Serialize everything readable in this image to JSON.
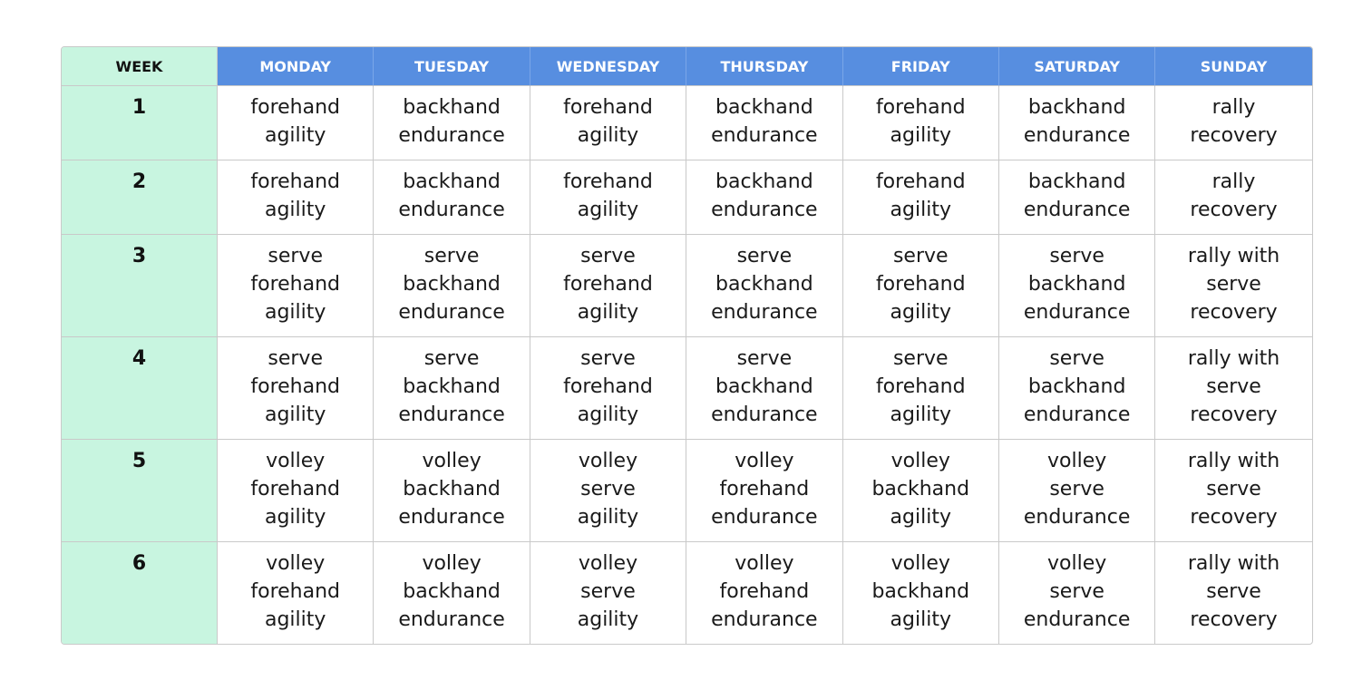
{
  "headers": {
    "week": "WEEK",
    "days": [
      "MONDAY",
      "TUESDAY",
      "WEDNESDAY",
      "THURSDAY",
      "FRIDAY",
      "SATURDAY",
      "SUNDAY"
    ]
  },
  "colors": {
    "week_column_bg": "#c8f5e0",
    "day_header_bg": "#578ee0",
    "day_header_text": "#ffffff",
    "grid_border": "#c9c9c9"
  },
  "rows": [
    {
      "week": "1",
      "cells": [
        [
          "forehand",
          "agility"
        ],
        [
          "backhand",
          "endurance"
        ],
        [
          "forehand",
          "agility"
        ],
        [
          "backhand",
          "endurance"
        ],
        [
          "forehand",
          "agility"
        ],
        [
          "backhand",
          "endurance"
        ],
        [
          "rally",
          "recovery"
        ]
      ]
    },
    {
      "week": "2",
      "cells": [
        [
          "forehand",
          "agility"
        ],
        [
          "backhand",
          "endurance"
        ],
        [
          "forehand",
          "agility"
        ],
        [
          "backhand",
          "endurance"
        ],
        [
          "forehand",
          "agility"
        ],
        [
          "backhand",
          "endurance"
        ],
        [
          "rally",
          "recovery"
        ]
      ]
    },
    {
      "week": "3",
      "cells": [
        [
          "serve",
          "forehand",
          "agility"
        ],
        [
          "serve",
          "backhand",
          "endurance"
        ],
        [
          "serve",
          "forehand",
          "agility"
        ],
        [
          "serve",
          "backhand",
          "endurance"
        ],
        [
          "serve",
          "forehand",
          "agility"
        ],
        [
          "serve",
          "backhand",
          "endurance"
        ],
        [
          "rally with",
          "serve",
          "recovery"
        ]
      ]
    },
    {
      "week": "4",
      "cells": [
        [
          "serve",
          "forehand",
          "agility"
        ],
        [
          "serve",
          "backhand",
          "endurance"
        ],
        [
          "serve",
          "forehand",
          "agility"
        ],
        [
          "serve",
          "backhand",
          "endurance"
        ],
        [
          "serve",
          "forehand",
          "agility"
        ],
        [
          "serve",
          "backhand",
          "endurance"
        ],
        [
          "rally with",
          "serve",
          "recovery"
        ]
      ]
    },
    {
      "week": "5",
      "cells": [
        [
          "volley",
          "forehand",
          "agility"
        ],
        [
          "volley",
          "backhand",
          "endurance"
        ],
        [
          "volley",
          "serve",
          "agility"
        ],
        [
          "volley",
          "forehand",
          "endurance"
        ],
        [
          "volley",
          "backhand",
          "agility"
        ],
        [
          "volley",
          "serve",
          "endurance"
        ],
        [
          "rally with",
          "serve",
          "recovery"
        ]
      ]
    },
    {
      "week": "6",
      "cells": [
        [
          "volley",
          "forehand",
          "agility"
        ],
        [
          "volley",
          "backhand",
          "endurance"
        ],
        [
          "volley",
          "serve",
          "agility"
        ],
        [
          "volley",
          "forehand",
          "endurance"
        ],
        [
          "volley",
          "backhand",
          "agility"
        ],
        [
          "volley",
          "serve",
          "endurance"
        ],
        [
          "rally with",
          "serve",
          "recovery"
        ]
      ]
    }
  ]
}
